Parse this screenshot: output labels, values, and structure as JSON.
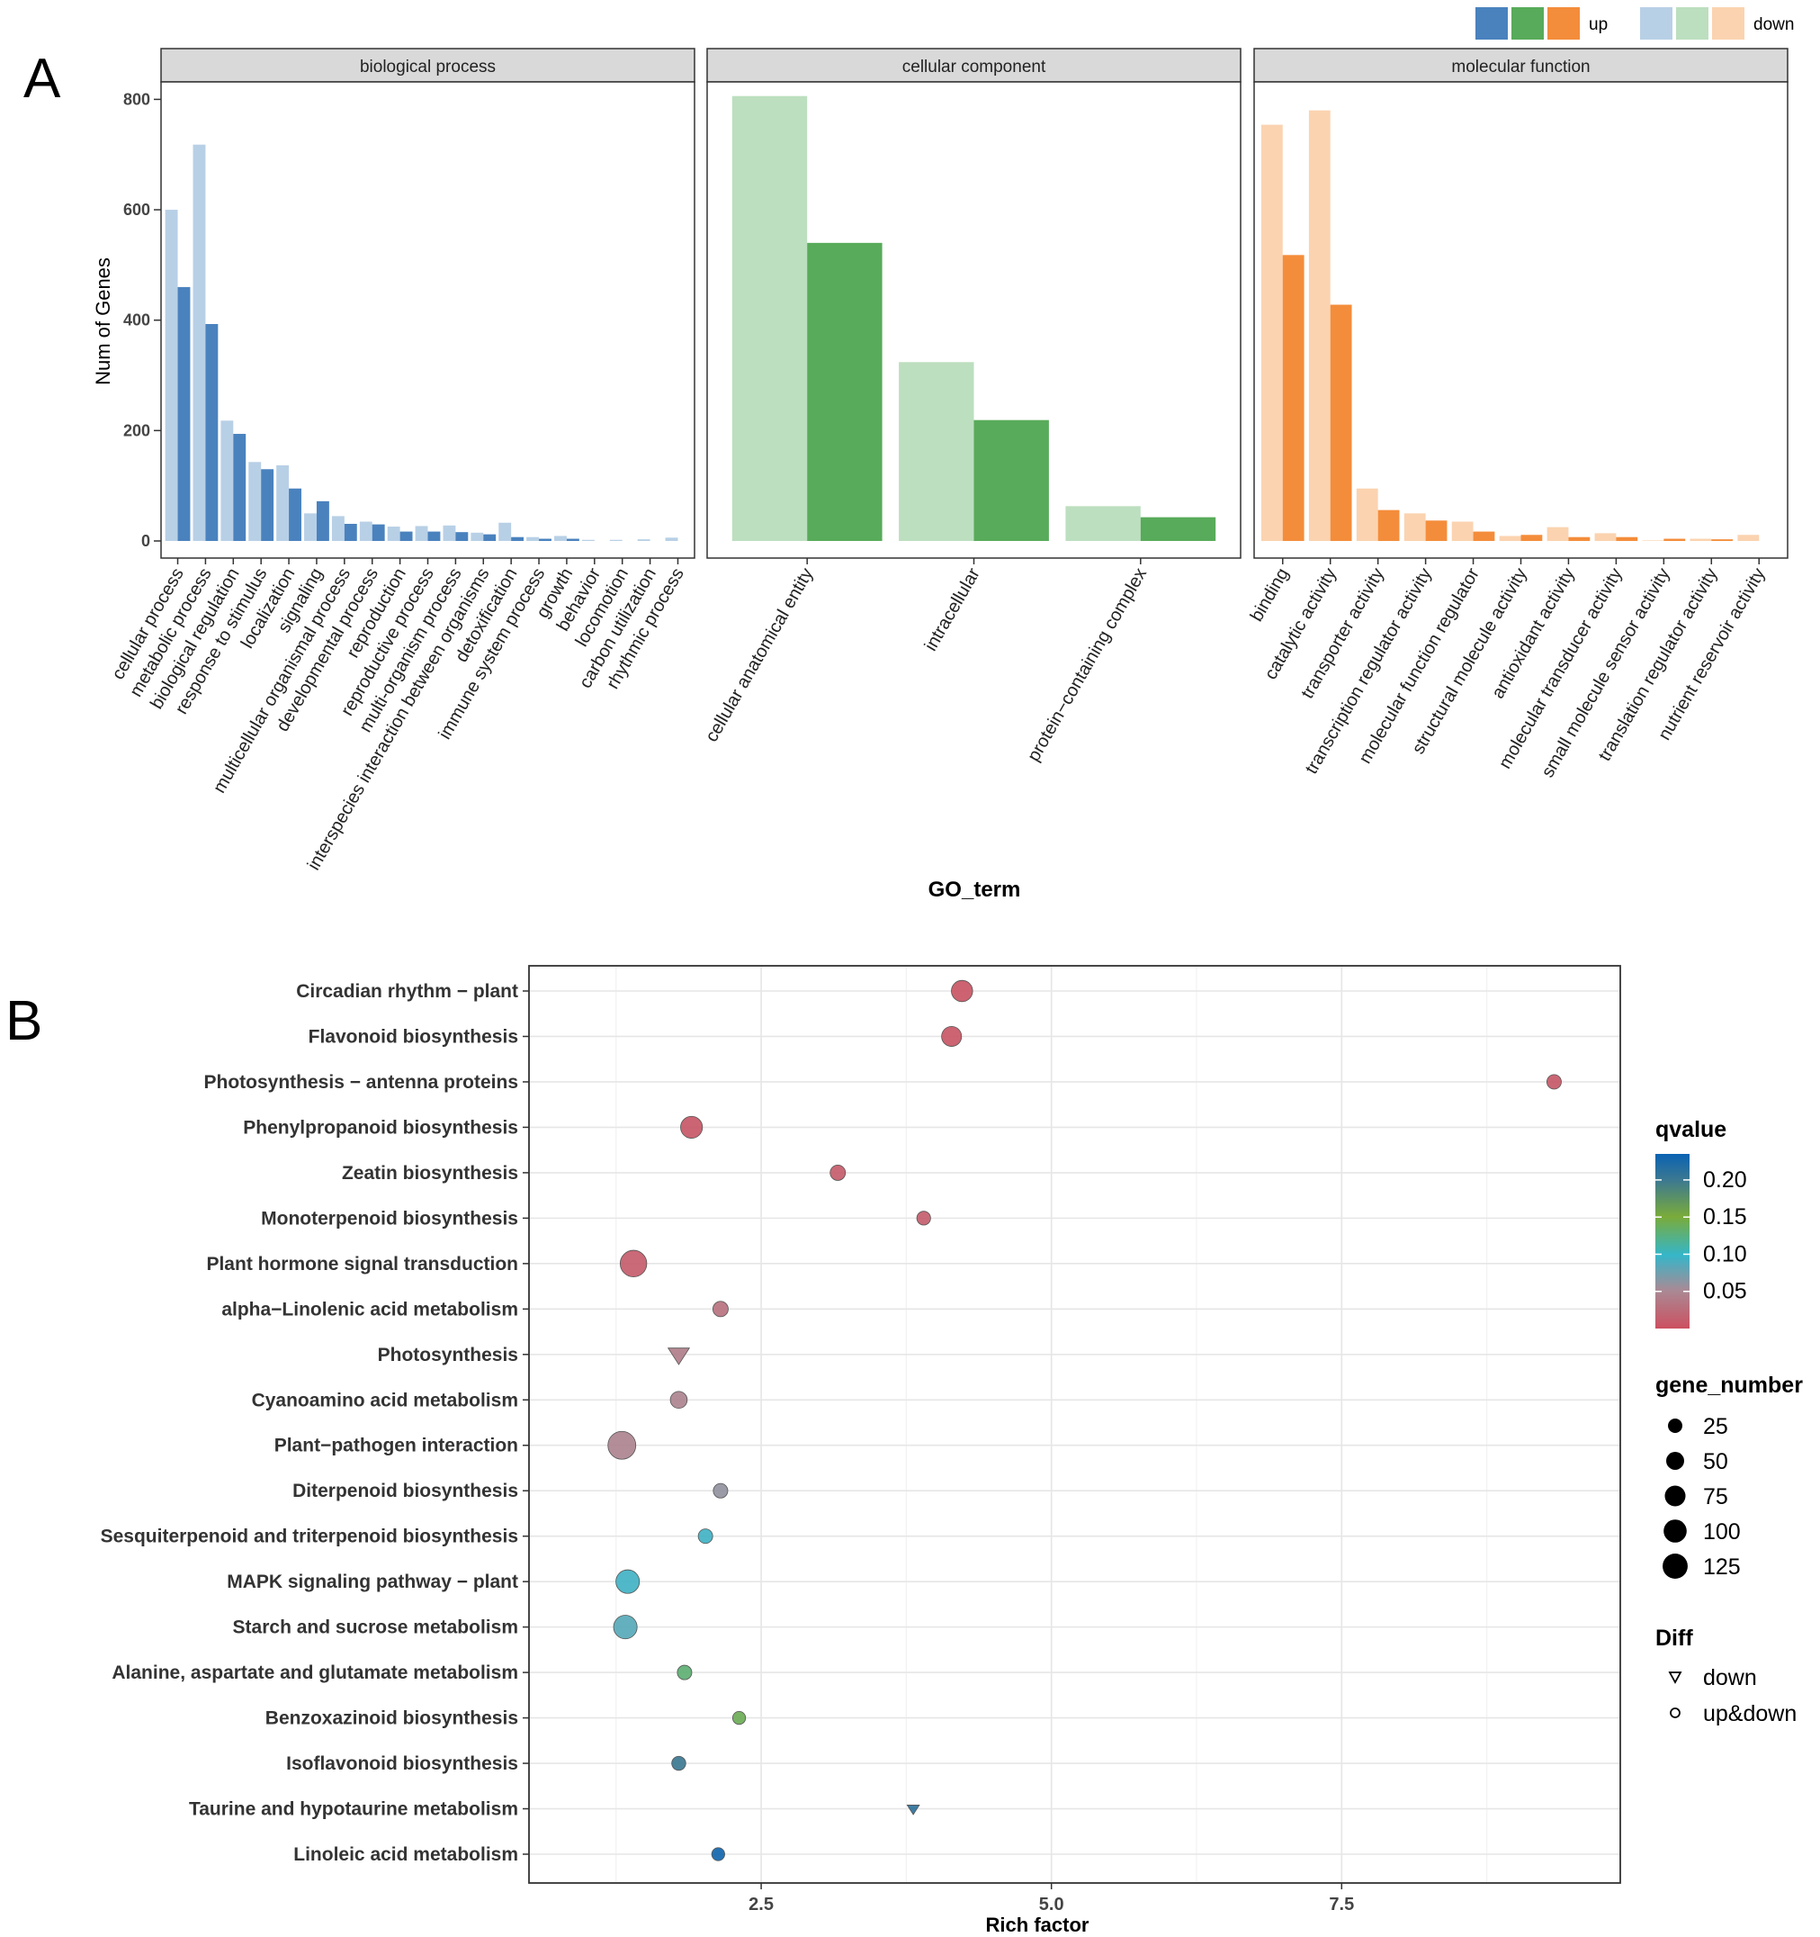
{
  "panel_labels": {
    "a": "A",
    "b": "B"
  },
  "colors": {
    "bp_up": "#4a82be",
    "bp_down": "#b8d0e6",
    "cc_up": "#58ab5a",
    "cc_down": "#bcdfbf",
    "mf_up": "#f48d3b",
    "mf_down": "#fbd3b0",
    "panel_strip": "#d9d9d9",
    "grid": "#ebebeb",
    "frame": "#333333"
  },
  "legend_a": {
    "up_label": "up",
    "down_label": "down"
  },
  "chart_data": [
    {
      "type": "bar",
      "title": "",
      "xlabel": "GO_term",
      "ylabel": "Num of Genes",
      "ylim": [
        0,
        830
      ],
      "yticks": [
        0,
        200,
        400,
        600,
        800
      ],
      "facets": [
        {
          "id": "bp",
          "title": "biological process",
          "categories": [
            "cellular process",
            "metabolic process",
            "biological regulation",
            "response to stimulus",
            "localization",
            "signaling",
            "multicellular organismal process",
            "developmental process",
            "reproduction",
            "reproductive process",
            "multi-organism process",
            "interspecies interaction between organisms",
            "detoxification",
            "immune system process",
            "growth",
            "behavior",
            "locomotion",
            "carbon utilization",
            "rhythmic process"
          ],
          "series": [
            {
              "name": "down",
              "values": [
                600,
                718,
                218,
                143,
                137,
                50,
                45,
                35,
                26,
                27,
                28,
                15,
                33,
                7,
                9,
                2,
                2,
                3,
                6
              ]
            },
            {
              "name": "up",
              "values": [
                460,
                393,
                194,
                130,
                95,
                72,
                31,
                30,
                17,
                17,
                16,
                12,
                7,
                4,
                4,
                0,
                0,
                0,
                0
              ]
            }
          ]
        },
        {
          "id": "cc",
          "title": "cellular component",
          "categories": [
            "cellular anatomical entity",
            "intracellular",
            "protein−containing complex"
          ],
          "series": [
            {
              "name": "down",
              "values": [
                806,
                324,
                63
              ]
            },
            {
              "name": "up",
              "values": [
                540,
                219,
                43
              ]
            }
          ]
        },
        {
          "id": "mf",
          "title": "molecular function",
          "categories": [
            "binding",
            "catalytic activity",
            "transporter activity",
            "transcription regulator activity",
            "molecular function regulator",
            "structural molecule activity",
            "antioxidant activity",
            "molecular transducer activity",
            "small molecule sensor activity",
            "translation regulator activity",
            "nutrient reservoir activity"
          ],
          "series": [
            {
              "name": "down",
              "values": [
                754,
                780,
                95,
                50,
                35,
                9,
                25,
                14,
                1,
                4,
                11
              ]
            },
            {
              "name": "up",
              "values": [
                518,
                428,
                56,
                37,
                17,
                11,
                7,
                7,
                4,
                3,
                0
              ]
            }
          ]
        }
      ]
    },
    {
      "type": "scatter",
      "title": "",
      "xlabel": "Rich factor",
      "ylabel": "",
      "xlim": [
        0.5,
        9.9
      ],
      "xticks": [
        2.5,
        5.0,
        7.5
      ],
      "xtick_labels": [
        "2.5",
        "5.0",
        "7.5"
      ],
      "points": [
        {
          "term": "Circadian rhythm − plant",
          "x": 4.23,
          "q": 0.005,
          "genes": 60,
          "diff": "up&down"
        },
        {
          "term": "Flavonoid biosynthesis",
          "x": 4.14,
          "q": 0.006,
          "genes": 50,
          "diff": "up&down"
        },
        {
          "term": "Photosynthesis − antenna proteins",
          "x": 9.33,
          "q": 0.008,
          "genes": 18,
          "diff": "up&down"
        },
        {
          "term": "Phenylpropanoid biosynthesis",
          "x": 1.9,
          "q": 0.007,
          "genes": 65,
          "diff": "up&down"
        },
        {
          "term": "Zeatin biosynthesis",
          "x": 3.16,
          "q": 0.01,
          "genes": 22,
          "diff": "up&down"
        },
        {
          "term": "Monoterpenoid biosynthesis",
          "x": 3.9,
          "q": 0.012,
          "genes": 15,
          "diff": "up&down"
        },
        {
          "term": "Plant hormone signal transduction",
          "x": 1.4,
          "q": 0.01,
          "genes": 110,
          "diff": "up&down"
        },
        {
          "term": "alpha−Linolenic acid metabolism",
          "x": 2.15,
          "q": 0.03,
          "genes": 22,
          "diff": "up&down"
        },
        {
          "term": "Photosynthesis",
          "x": 1.79,
          "q": 0.04,
          "genes": 40,
          "diff": "down"
        },
        {
          "term": "Cyanoamino acid metabolism",
          "x": 1.79,
          "q": 0.045,
          "genes": 30,
          "diff": "up&down"
        },
        {
          "term": "Plant−pathogen interaction",
          "x": 1.3,
          "q": 0.045,
          "genes": 125,
          "diff": "up&down"
        },
        {
          "term": "Diterpenoid biosynthesis",
          "x": 2.15,
          "q": 0.06,
          "genes": 18,
          "diff": "up&down"
        },
        {
          "term": "Sesquiterpenoid and triterpenoid biosynthesis",
          "x": 2.02,
          "q": 0.095,
          "genes": 18,
          "diff": "up&down"
        },
        {
          "term": "MAPK signaling pathway − plant",
          "x": 1.35,
          "q": 0.095,
          "genes": 80,
          "diff": "up&down"
        },
        {
          "term": "Starch and sucrose metabolism",
          "x": 1.33,
          "q": 0.085,
          "genes": 80,
          "diff": "up&down"
        },
        {
          "term": "Alanine, aspartate and glutamate metabolism",
          "x": 1.84,
          "q": 0.13,
          "genes": 18,
          "diff": "up&down"
        },
        {
          "term": "Benzoxazinoid biosynthesis",
          "x": 2.31,
          "q": 0.14,
          "genes": 12,
          "diff": "up&down"
        },
        {
          "term": "Isoflavonoid biosynthesis",
          "x": 1.79,
          "q": 0.2,
          "genes": 16,
          "diff": "up&down"
        },
        {
          "term": "Taurine and hypotaurine metabolism",
          "x": 3.81,
          "q": 0.21,
          "genes": 5,
          "diff": "down"
        },
        {
          "term": "Linoleic acid metabolism",
          "x": 2.13,
          "q": 0.23,
          "genes": 12,
          "diff": "up&down"
        }
      ],
      "legend": {
        "color_title": "qvalue",
        "color_ticks": [
          0.2,
          0.15,
          0.1,
          0.05
        ],
        "color_tick_labels": [
          "0.20",
          "0.15",
          "0.10",
          "0.05"
        ],
        "color_range": [
          0.0,
          0.235
        ],
        "size_title": "gene_number",
        "size_breaks": [
          25,
          50,
          75,
          100,
          125
        ],
        "size_labels": [
          "25",
          "50",
          "75",
          "100",
          "125"
        ],
        "shape_title": "Diff",
        "shape_labels": [
          "down",
          "up&down"
        ]
      }
    }
  ]
}
